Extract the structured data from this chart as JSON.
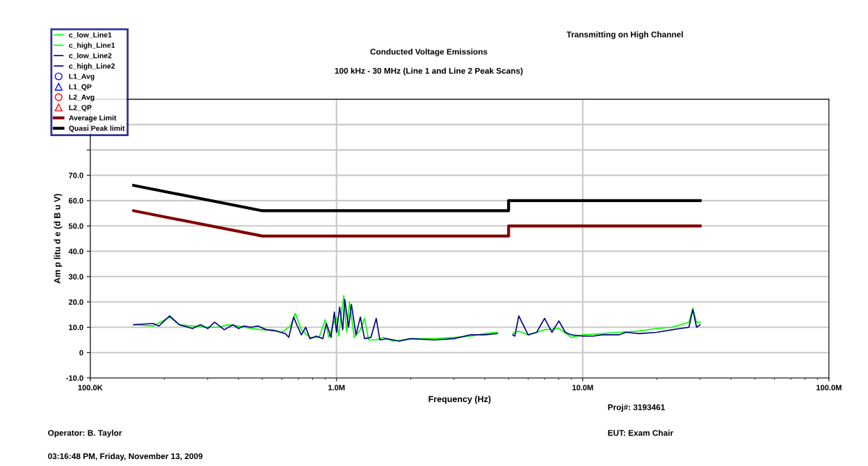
{
  "chart_data": {
    "type": "line",
    "title": "Conducted Voltage Emissions",
    "subtitle": "100 kHz - 30 MHz (Line 1 and Line 2 Peak Scans)",
    "xlabel": "Frequency (Hz)",
    "ylabel": "Am p litu d e (d B u V)",
    "log": "x",
    "grid": true,
    "legend": "top left",
    "xlim": [
      100000,
      100000000
    ],
    "xticks": [
      {
        "value": 100000,
        "label": "100.0K"
      },
      {
        "value": 1000000,
        "label": "1.0M"
      },
      {
        "value": 10000000,
        "label": "10.0M"
      },
      {
        "value": 100000000,
        "label": "100.0M"
      }
    ],
    "ylim": [
      -10,
      100
    ],
    "yticks": [
      {
        "value": -10,
        "label": "-10.0"
      },
      {
        "value": 0,
        "label": "0"
      },
      {
        "value": 10,
        "label": "10.0"
      },
      {
        "value": 20,
        "label": "20.0"
      },
      {
        "value": 30,
        "label": "30.0"
      },
      {
        "value": 40,
        "label": "40.0"
      },
      {
        "value": 50,
        "label": "50.0"
      },
      {
        "value": 60,
        "label": "60.0"
      },
      {
        "value": 70,
        "label": "70.0"
      },
      {
        "value": 80,
        "label": null
      },
      {
        "value": 90,
        "label": null
      },
      {
        "value": 100,
        "label": null
      }
    ],
    "annotations": [
      "Transmitting on High Channel",
      "Proj#: 3193461",
      "EUT: Exam Chair",
      "Operator: B. Taylor",
      "03:16:48 PM, Friday, November 13, 2009"
    ],
    "series": [
      {
        "name": "c_low_Line1",
        "color": "#00ff00",
        "x": [
          150000,
          180000,
          210000,
          230000,
          260000,
          300000,
          330000,
          360000,
          400000,
          450000,
          500000,
          550000,
          600000,
          650000,
          680000,
          720000,
          780000,
          850000,
          900000,
          930000,
          970000,
          1000000,
          1020000,
          1070000,
          1100000,
          1130000,
          1180000,
          1250000,
          1300000,
          1350000,
          1450000,
          1550000,
          1700000,
          2000000,
          2500000,
          3000000,
          3500000,
          4000000,
          4500000
        ],
        "values": [
          11,
          10.5,
          14,
          11,
          10.5,
          10,
          10,
          11,
          10.5,
          9.5,
          9,
          9,
          8,
          10.5,
          15.5,
          9,
          6,
          6,
          13,
          6,
          11,
          14,
          6.5,
          22.5,
          8,
          20,
          6,
          9,
          13.5,
          5,
          5,
          6,
          4.5,
          5.5,
          5.5,
          6,
          6.5,
          7.5,
          8
        ]
      },
      {
        "name": "c_high_Line1",
        "color": "#00ff00",
        "x": [
          5200000,
          5500000,
          6000000,
          7000000,
          8000000,
          9000000,
          10000000,
          12000000,
          14000000,
          17000000,
          20000000,
          23000000,
          25000000,
          27000000,
          28000000,
          29000000,
          30000000
        ],
        "values": [
          7.5,
          8.5,
          7,
          9,
          9.5,
          6,
          7,
          7.5,
          8,
          8.5,
          9.5,
          10,
          11,
          12,
          17.5,
          12,
          12
        ]
      },
      {
        "name": "c_low_Line2",
        "color": "#000080",
        "x": [
          150000,
          180000,
          190000,
          210000,
          230000,
          260000,
          280000,
          300000,
          320000,
          350000,
          380000,
          400000,
          420000,
          450000,
          480000,
          520000,
          570000,
          620000,
          640000,
          670000,
          690000,
          720000,
          750000,
          780000,
          830000,
          880000,
          910000,
          950000,
          980000,
          1000000,
          1030000,
          1060000,
          1080000,
          1120000,
          1150000,
          1200000,
          1250000,
          1300000,
          1380000,
          1450000,
          1500000,
          1600000,
          1800000,
          2000000,
          2500000,
          3000000,
          3500000,
          4000000,
          4500000
        ],
        "values": [
          11,
          11.5,
          10.5,
          14.5,
          11,
          9.5,
          11,
          9.5,
          12,
          9,
          11,
          9.5,
          10.5,
          10,
          10.5,
          9,
          8.5,
          7.5,
          6,
          14,
          11,
          7,
          10,
          5.5,
          6.5,
          5.5,
          11.5,
          6,
          16,
          8,
          18,
          9,
          21,
          10,
          19,
          7,
          14,
          5.5,
          6,
          13.5,
          5,
          5.5,
          4.5,
          5.5,
          5,
          5.5,
          7,
          7,
          7.5
        ]
      },
      {
        "name": "c_high_Line2",
        "color": "#000080",
        "x": [
          5200000,
          5300000,
          5500000,
          6000000,
          6500000,
          7000000,
          7500000,
          8000000,
          8500000,
          9000000,
          10000000,
          11000000,
          12000000,
          14000000,
          15000000,
          17000000,
          20000000,
          23000000,
          25000000,
          27000000,
          28000000,
          29000000,
          30000000
        ],
        "values": [
          7,
          6.5,
          14.5,
          7,
          8,
          13.5,
          8,
          12.5,
          8,
          7,
          6.5,
          6.5,
          7,
          7,
          8,
          7.5,
          8,
          9,
          9.5,
          10,
          17,
          10,
          11
        ]
      },
      {
        "name": "L1_Avg",
        "type": "scatter",
        "marker": "circle",
        "color": "#0000ff"
      },
      {
        "name": "L1_QP",
        "type": "scatter",
        "marker": "triangle",
        "color": "#0000ff"
      },
      {
        "name": "L2_Avg",
        "type": "scatter",
        "marker": "circle",
        "color": "#ff0000"
      },
      {
        "name": "L2_QP",
        "type": "scatter",
        "marker": "triangle",
        "color": "#ff0000"
      },
      {
        "name": "Average Limit",
        "color": "#800000",
        "x": [
          150000,
          500000,
          5000000,
          5000000,
          30000000
        ],
        "values": [
          56,
          46,
          46,
          50,
          50
        ]
      },
      {
        "name": "Quasi Peak limit",
        "color": "#000000",
        "x": [
          150000,
          500000,
          5000000,
          5000000,
          30000000
        ],
        "values": [
          66,
          56,
          56,
          60,
          60
        ]
      }
    ]
  }
}
